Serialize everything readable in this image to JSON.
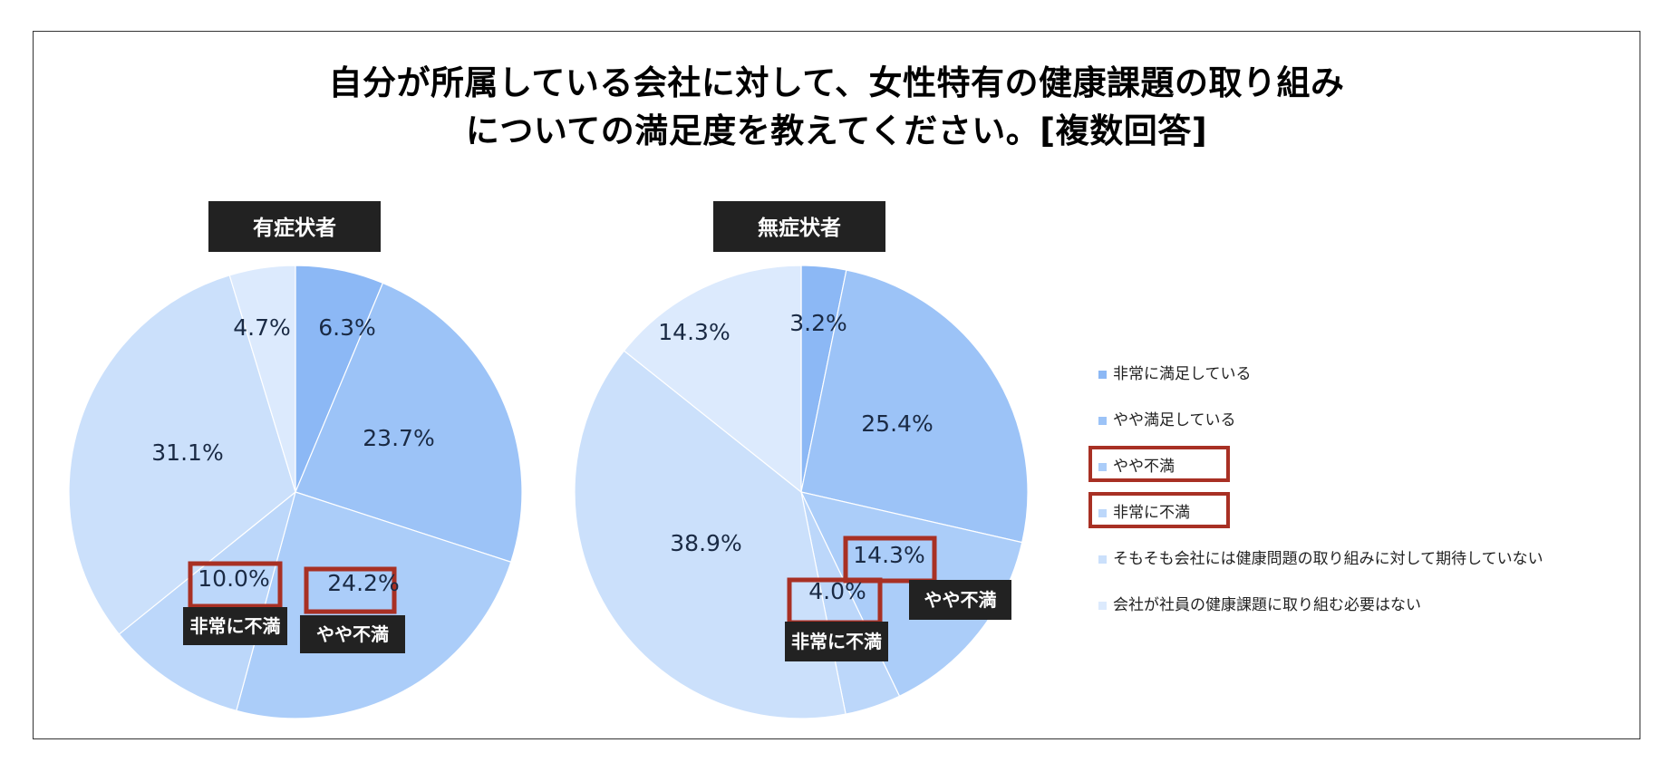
{
  "title_lines": [
    "自分が所属している会社に対して、女性特有の健康課題の取り組み",
    "についての満足度を教えてください。[複数回答]"
  ],
  "colors": {
    "very_satisfied": "#8cb8f5",
    "somewhat_satisfied": "#9cc3f7",
    "somewhat_dissatisfied": "#abcdf9",
    "very_dissatisfied": "#bcd7fa",
    "no_expectation": "#cbe0fb",
    "no_need": "#dceafd",
    "highlight": "#a83024",
    "dark_box": "#222222"
  },
  "chart_data": [
    {
      "type": "pie",
      "title": "有症状者",
      "categories": [
        "非常に満足している",
        "やや満足している",
        "やや不満",
        "非常に不満",
        "そもそも会社には健康問題の取り組みに対して期待していない",
        "会社が社員の健康課題に取り組む必要はない"
      ],
      "values": [
        6.3,
        23.7,
        24.2,
        10.0,
        31.1,
        4.7
      ],
      "labels": [
        "6.3%",
        "23.7%",
        "24.2%",
        "10.0%",
        "31.1%",
        "4.7%"
      ],
      "callouts": [
        "やや不満",
        "非常に不満"
      ]
    },
    {
      "type": "pie",
      "title": "無症状者",
      "categories": [
        "非常に満足している",
        "やや満足している",
        "やや不満",
        "非常に不満",
        "そもそも会社には健康問題の取り組みに対して期待していない",
        "会社が社員の健康課題に取り組む必要はない"
      ],
      "values": [
        3.2,
        25.4,
        14.3,
        4.0,
        38.9,
        14.3
      ],
      "labels": [
        "3.2%",
        "25.4%",
        "14.3%",
        "4.0%",
        "38.9%",
        "14.3%"
      ],
      "callouts": [
        "やや不満",
        "非常に不満"
      ]
    }
  ],
  "legend": [
    {
      "label": "非常に満足している",
      "highlighted": false
    },
    {
      "label": "やや満足している",
      "highlighted": false
    },
    {
      "label": "やや不満",
      "highlighted": true
    },
    {
      "label": "非常に不満",
      "highlighted": true
    },
    {
      "label": "そもそも会社には健康問題の取り組みに対して期待していない",
      "highlighted": false
    },
    {
      "label": "会社が社員の健康課題に取り組む必要はない",
      "highlighted": false
    }
  ]
}
